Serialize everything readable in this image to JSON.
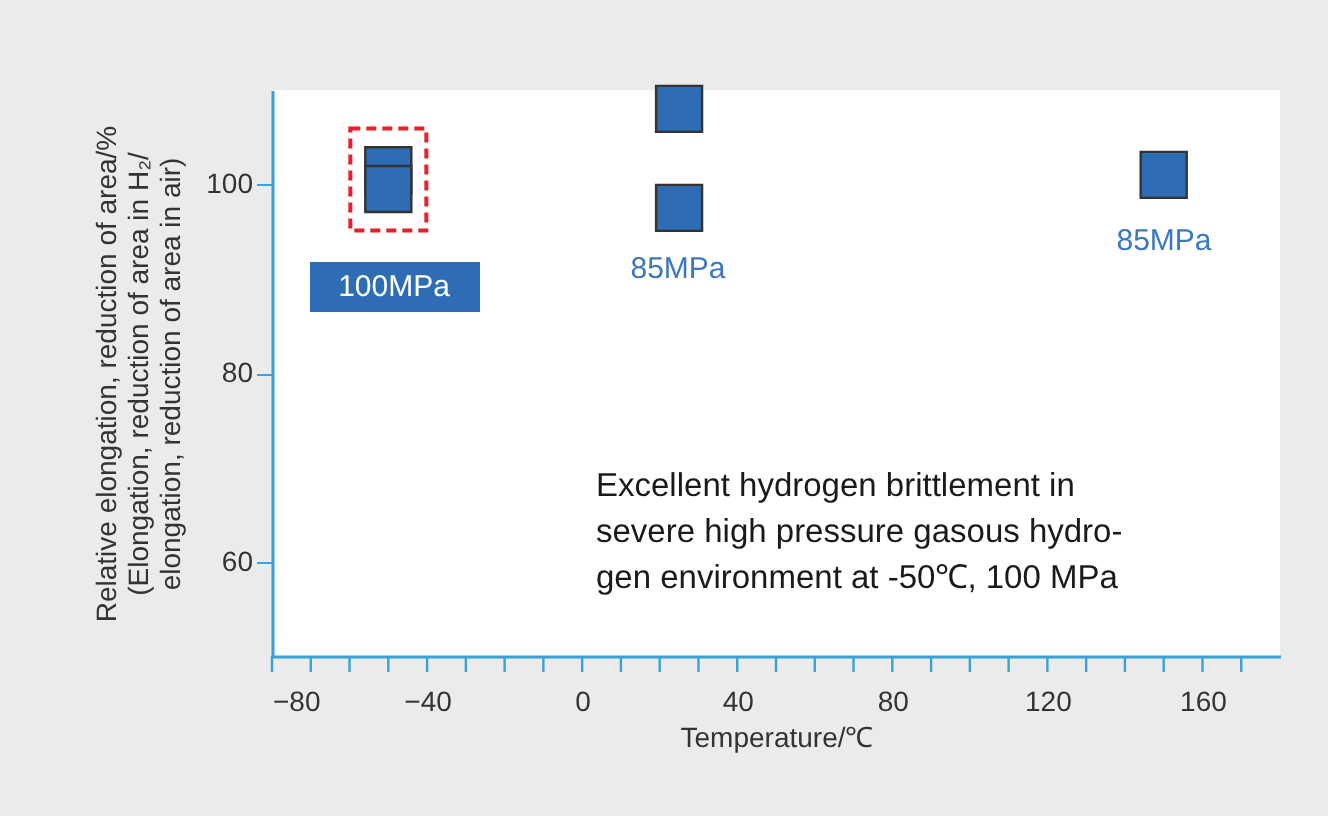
{
  "chart_data": {
    "type": "scatter",
    "x": [
      -50,
      -50,
      25,
      25,
      150
    ],
    "series": [
      {
        "color": "#2e6db4",
        "values": [
          101.5,
          99.5,
          108,
          97.5,
          101
        ]
      }
    ],
    "marker": "square",
    "xlabel": "Temperature/℃",
    "ylabel": "Relative elongation, reduction of area/%\n(Elongation, reduction of area in H₂/\nelongation, reduction of area in air)",
    "xlim": [
      -80,
      180
    ],
    "ylim": [
      50,
      110
    ],
    "xticks": [
      {
        "value": -80,
        "label": "−80"
      },
      {
        "value": -70,
        "label": null
      },
      {
        "value": -60,
        "label": null
      },
      {
        "value": -50,
        "label": null
      },
      {
        "value": -40,
        "label": "−40"
      },
      {
        "value": -30,
        "label": null
      },
      {
        "value": -20,
        "label": null
      },
      {
        "value": -10,
        "label": null
      },
      0,
      {
        "value": 10,
        "label": null
      },
      {
        "value": 20,
        "label": null
      },
      {
        "value": 30,
        "label": null
      },
      40,
      {
        "value": 50,
        "label": null
      },
      {
        "value": 60,
        "label": null
      },
      {
        "value": 70,
        "label": null
      },
      80,
      {
        "value": 90,
        "label": null
      },
      {
        "value": 100,
        "label": null
      },
      {
        "value": 110,
        "label": null
      },
      120,
      {
        "value": 130,
        "label": null
      },
      {
        "value": 140,
        "label": null
      },
      {
        "value": 150,
        "label": null
      },
      160,
      {
        "value": 170,
        "label": null
      }
    ],
    "yticks": [
      60,
      80,
      100
    ],
    "grid": false,
    "annotations": [
      "100MPa",
      "85MPa",
      "85MPa",
      "Excellent hydrogen brittlement in\nsevere high pressure gasous hydro-\ngen environment at -50℃, 100 MPa"
    ]
  }
}
